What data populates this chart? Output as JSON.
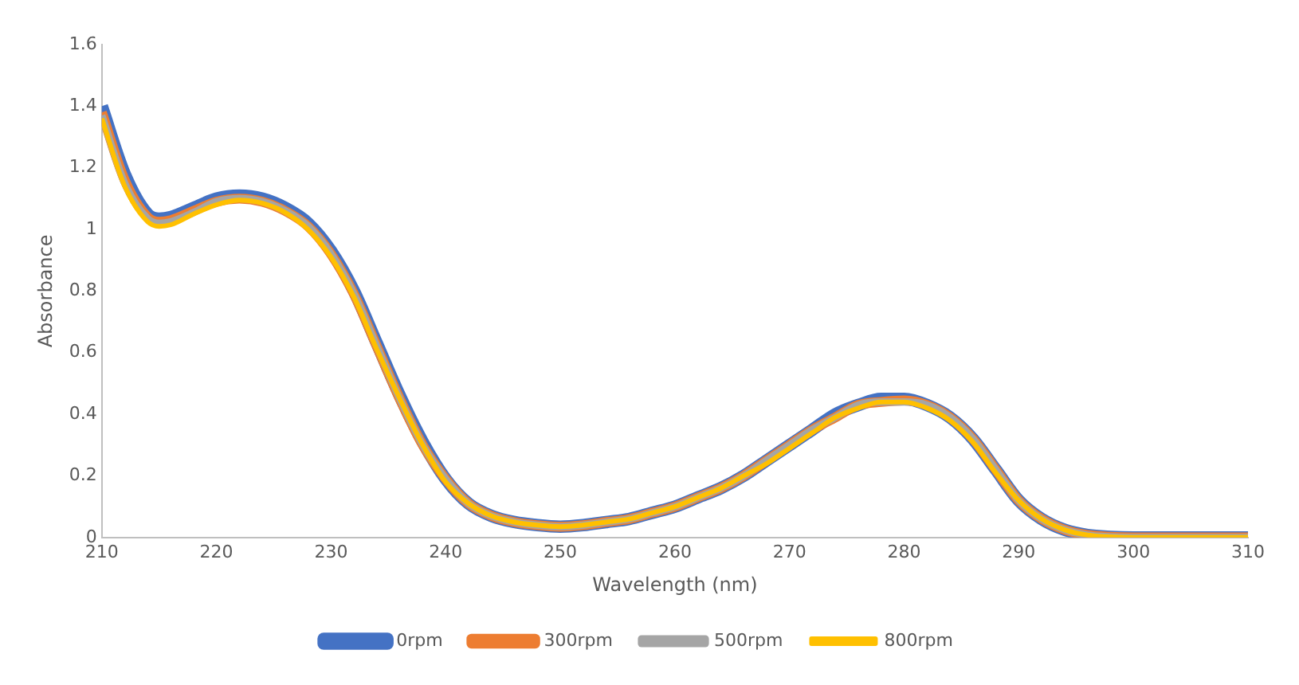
{
  "chart_data": {
    "type": "line",
    "xlabel": "Wavelength (nm)",
    "ylabel": "Absorbance",
    "x": [
      210,
      212,
      214,
      215,
      216,
      218,
      220,
      222,
      224,
      226,
      228,
      230,
      232,
      234,
      236,
      238,
      240,
      242,
      244,
      246,
      248,
      250,
      252,
      254,
      256,
      258,
      260,
      262,
      264,
      266,
      268,
      270,
      272,
      274,
      276,
      278,
      280,
      282,
      284,
      286,
      288,
      290,
      292,
      294,
      296,
      298,
      300,
      305,
      310
    ],
    "series": [
      {
        "name": "0rpm",
        "color": "#4472c4",
        "values": [
          1.4,
          1.18,
          1.05,
          1.035,
          1.04,
          1.07,
          1.1,
          1.11,
          1.1,
          1.07,
          1.02,
          0.93,
          0.8,
          0.63,
          0.46,
          0.31,
          0.19,
          0.11,
          0.07,
          0.05,
          0.04,
          0.035,
          0.04,
          0.05,
          0.06,
          0.08,
          0.1,
          0.13,
          0.16,
          0.2,
          0.25,
          0.3,
          0.35,
          0.4,
          0.43,
          0.45,
          0.45,
          0.43,
          0.39,
          0.32,
          0.22,
          0.12,
          0.06,
          0.025,
          0.008,
          0.002,
          0,
          0,
          0
        ]
      },
      {
        "name": "300rpm",
        "color": "#ed7d31",
        "values": [
          1.38,
          1.16,
          1.04,
          1.025,
          1.03,
          1.06,
          1.09,
          1.1,
          1.09,
          1.06,
          1.01,
          0.92,
          0.79,
          0.62,
          0.45,
          0.3,
          0.19,
          0.11,
          0.07,
          0.05,
          0.04,
          0.035,
          0.04,
          0.05,
          0.06,
          0.08,
          0.1,
          0.13,
          0.16,
          0.2,
          0.25,
          0.3,
          0.35,
          0.39,
          0.43,
          0.44,
          0.445,
          0.43,
          0.39,
          0.32,
          0.22,
          0.12,
          0.06,
          0.025,
          0.008,
          0.002,
          0,
          0,
          0
        ]
      },
      {
        "name": "500rpm",
        "color": "#a5a5a5",
        "values": [
          1.37,
          1.15,
          1.035,
          1.02,
          1.025,
          1.055,
          1.09,
          1.1,
          1.09,
          1.06,
          1.01,
          0.92,
          0.79,
          0.62,
          0.45,
          0.3,
          0.19,
          0.11,
          0.07,
          0.05,
          0.04,
          0.035,
          0.04,
          0.05,
          0.06,
          0.08,
          0.1,
          0.13,
          0.16,
          0.2,
          0.25,
          0.3,
          0.35,
          0.39,
          0.43,
          0.44,
          0.44,
          0.43,
          0.39,
          0.32,
          0.22,
          0.12,
          0.06,
          0.025,
          0.008,
          0.002,
          0,
          0,
          0
        ]
      },
      {
        "name": "800rpm",
        "color": "#ffc000",
        "values": [
          1.36,
          1.14,
          1.025,
          1.01,
          1.015,
          1.05,
          1.08,
          1.095,
          1.085,
          1.055,
          1.0,
          0.91,
          0.78,
          0.61,
          0.45,
          0.3,
          0.18,
          0.11,
          0.07,
          0.05,
          0.04,
          0.035,
          0.04,
          0.05,
          0.06,
          0.08,
          0.1,
          0.13,
          0.16,
          0.2,
          0.24,
          0.29,
          0.34,
          0.39,
          0.42,
          0.44,
          0.44,
          0.42,
          0.38,
          0.31,
          0.21,
          0.12,
          0.06,
          0.025,
          0.008,
          0.002,
          0,
          0,
          0
        ]
      }
    ],
    "xlim": [
      210,
      310
    ],
    "xticks": [
      210,
      220,
      230,
      240,
      250,
      260,
      270,
      280,
      290,
      300,
      310
    ],
    "ylim": [
      0,
      1.6
    ],
    "yticks": [
      0,
      0.2,
      0.4,
      0.6,
      0.8,
      1,
      1.2,
      1.4,
      1.6
    ],
    "grid": false,
    "legend": "bottom",
    "marker": "none",
    "line_style": "solid"
  }
}
